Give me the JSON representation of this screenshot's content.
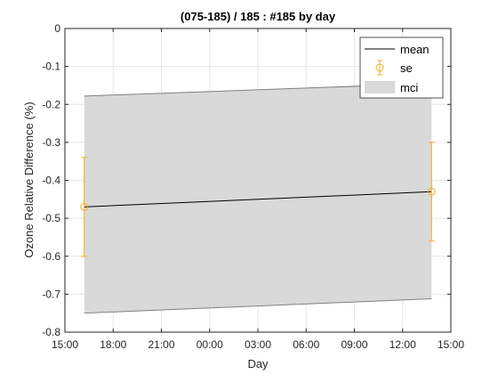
{
  "chart_data": {
    "type": "line",
    "title": "(075-185) / 185 : #185 by day",
    "xlabel": "Day",
    "ylabel": "Ozone Relative Difference (%)",
    "x_ticks": [
      "15:00",
      "18:00",
      "21:00",
      "00:00",
      "03:00",
      "06:00",
      "09:00",
      "12:00",
      "15:00"
    ],
    "x_tick_hours": [
      0,
      3,
      6,
      9,
      12,
      15,
      18,
      21,
      24
    ],
    "y_ticks": [
      "0",
      "-0.1",
      "-0.2",
      "-0.3",
      "-0.4",
      "-0.5",
      "-0.6",
      "-0.7",
      "-0.8"
    ],
    "y_tick_values": [
      0,
      -0.1,
      -0.2,
      -0.3,
      -0.4,
      -0.5,
      -0.6,
      -0.7,
      -0.8
    ],
    "xlim_hours": [
      0,
      24
    ],
    "ylim": [
      -0.8,
      0
    ],
    "grid": true,
    "legend_position": "top-right",
    "series": [
      {
        "name": "mean",
        "x_hours": [
          1.2,
          22.8
        ],
        "y": [
          -0.47,
          -0.43
        ],
        "color": "#000000"
      },
      {
        "name": "se",
        "x_hours": [
          1.2,
          22.8
        ],
        "y": [
          -0.47,
          -0.43
        ],
        "err_low": [
          -0.6,
          -0.56
        ],
        "err_high": [
          -0.34,
          -0.3
        ],
        "color": "#EDB120"
      },
      {
        "name": "mci",
        "x_hours": [
          1.2,
          22.8
        ],
        "upper": [
          -0.178,
          -0.145
        ],
        "lower": [
          -0.75,
          -0.712
        ],
        "color": "#d9d9d9"
      }
    ]
  }
}
